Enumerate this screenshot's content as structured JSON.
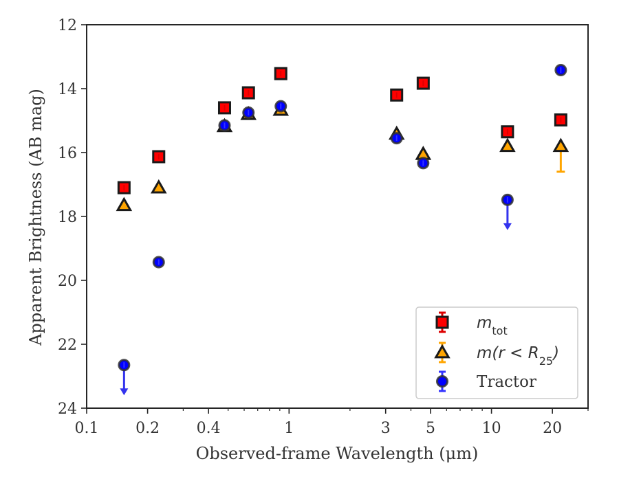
{
  "chart_data": {
    "type": "scatter",
    "title": "",
    "xlabel": "Observed-frame Wavelength (μm)",
    "ylabel": "Apparent Brightness (AB mag)",
    "xscale": "log",
    "xlim": [
      0.1,
      30
    ],
    "ylim": [
      24,
      12
    ],
    "y_inverted": true,
    "xticks": [
      {
        "value": 0.1,
        "label": "0.1"
      },
      {
        "value": 0.2,
        "label": "0.2"
      },
      {
        "value": 0.4,
        "label": "0.4"
      },
      {
        "value": 1,
        "label": "1"
      },
      {
        "value": 3,
        "label": "3"
      },
      {
        "value": 5,
        "label": "5"
      },
      {
        "value": 10,
        "label": "10"
      },
      {
        "value": 20,
        "label": "20"
      }
    ],
    "yticks": [
      {
        "value": 12,
        "label": "12"
      },
      {
        "value": 14,
        "label": "14"
      },
      {
        "value": 16,
        "label": "16"
      },
      {
        "value": 18,
        "label": "18"
      },
      {
        "value": 20,
        "label": "20"
      },
      {
        "value": 22,
        "label": "22"
      },
      {
        "value": 24,
        "label": "24"
      }
    ],
    "legend_position": "lower right",
    "series": [
      {
        "name": "m_tot",
        "marker": "square",
        "color": "#ff0000",
        "edge": "#1a1a1a",
        "errcolor": "#dd0000",
        "points": [
          {
            "x": 0.153,
            "y": 17.1
          },
          {
            "x": 0.227,
            "y": 16.13
          },
          {
            "x": 0.48,
            "y": 14.6
          },
          {
            "x": 0.63,
            "y": 14.13
          },
          {
            "x": 0.91,
            "y": 13.53
          },
          {
            "x": 3.4,
            "y": 14.2
          },
          {
            "x": 4.6,
            "y": 13.83
          },
          {
            "x": 12.0,
            "y": 15.35
          },
          {
            "x": 22.0,
            "y": 14.98
          }
        ]
      },
      {
        "name": "m(r < R25)",
        "marker": "triangle",
        "color": "#ffa500",
        "edge": "#1a1a1a",
        "errcolor": "#ffa500",
        "points": [
          {
            "x": 0.153,
            "y": 17.65
          },
          {
            "x": 0.227,
            "y": 17.1
          },
          {
            "x": 0.48,
            "y": 15.18
          },
          {
            "x": 0.63,
            "y": 14.8
          },
          {
            "x": 0.91,
            "y": 14.67
          },
          {
            "x": 3.4,
            "y": 15.42
          },
          {
            "x": 4.6,
            "y": 16.05
          },
          {
            "x": 12.0,
            "y": 15.8
          },
          {
            "x": 22.0,
            "y": 15.8,
            "err_low": 0.0,
            "err_high": 0.8
          }
        ]
      },
      {
        "name": "Tractor",
        "marker": "circle",
        "color": "#0000ff",
        "edge": "#333333",
        "errcolor": "#3333ff",
        "points": [
          {
            "x": 0.153,
            "y": 22.65,
            "upper_limit": true
          },
          {
            "x": 0.227,
            "y": 19.43
          },
          {
            "x": 0.48,
            "y": 15.15
          },
          {
            "x": 0.63,
            "y": 14.75
          },
          {
            "x": 0.91,
            "y": 14.55
          },
          {
            "x": 3.4,
            "y": 15.55
          },
          {
            "x": 4.6,
            "y": 16.33
          },
          {
            "x": 12.0,
            "y": 17.48,
            "upper_limit": true
          },
          {
            "x": 22.0,
            "y": 13.42
          }
        ]
      }
    ],
    "legend": [
      {
        "label_base": "m",
        "label_sub": "tot",
        "label_tail": ""
      },
      {
        "label_base": "m(r < R",
        "label_sub": "25",
        "label_tail": ")"
      },
      {
        "label_base": "Tractor",
        "label_sub": "",
        "label_tail": ""
      }
    ]
  }
}
